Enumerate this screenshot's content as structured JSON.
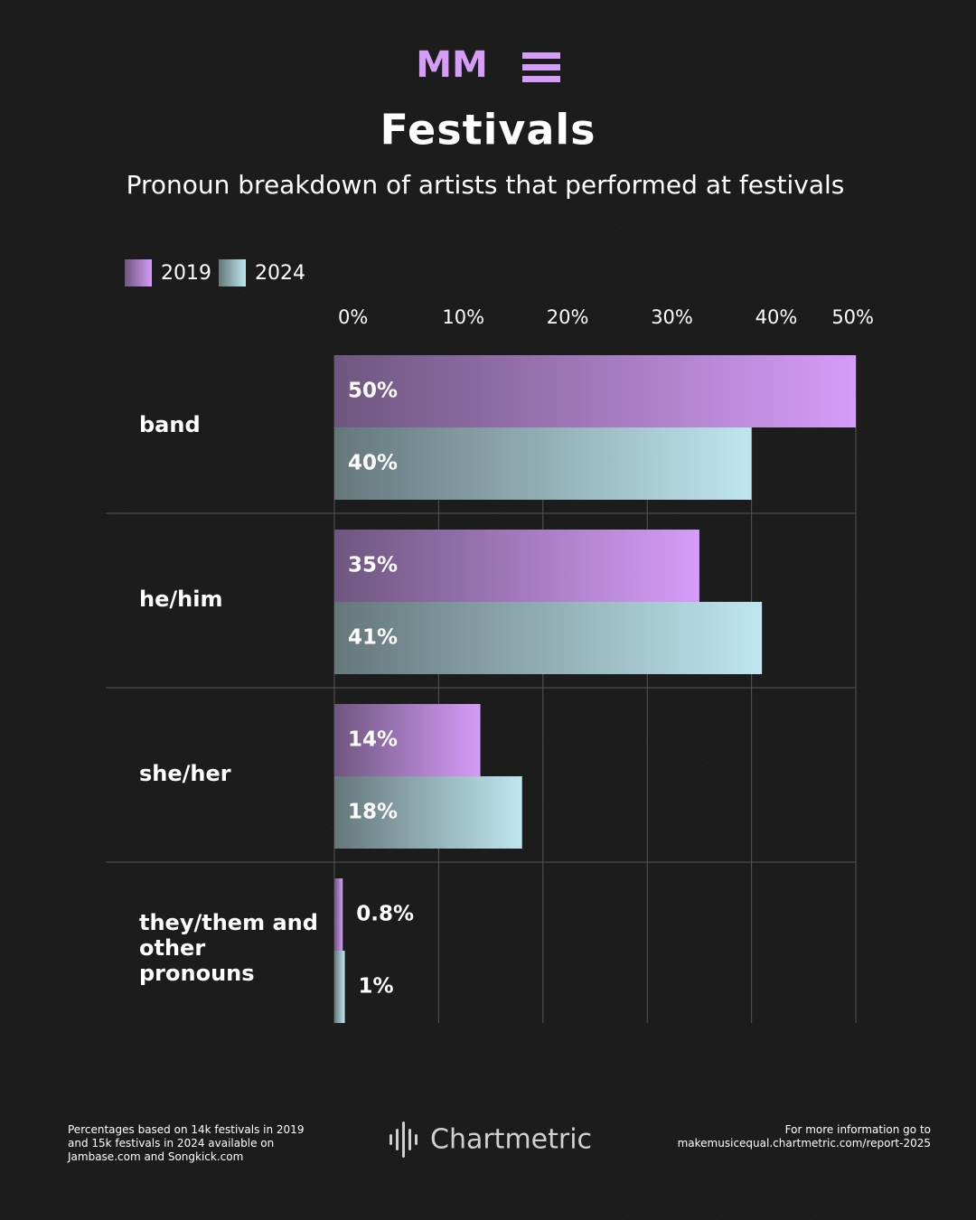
{
  "logo": "MM",
  "chart_data": {
    "type": "bar",
    "orientation": "horizontal",
    "title": "Festivals",
    "subtitle": "Pronoun breakdown of artists that performed at festivals",
    "categories": [
      "band",
      "he/him",
      "she/her",
      "they/them and other pronouns"
    ],
    "series": [
      {
        "name": "2019",
        "color": "#d59cf8",
        "values": [
          50,
          35,
          14,
          0.8
        ],
        "value_labels": [
          "50%",
          "35%",
          "14%",
          "0.8%"
        ]
      },
      {
        "name": "2024",
        "color": "#bfe6f0",
        "values": [
          40,
          41,
          18,
          1
        ],
        "value_labels": [
          "40%",
          "41%",
          "18%",
          "1%"
        ]
      }
    ],
    "xlim": [
      0,
      50
    ],
    "xticks": [
      {
        "value": 0,
        "label": "0%"
      },
      {
        "value": 10,
        "label": "10%"
      },
      {
        "value": 20,
        "label": "20%"
      },
      {
        "value": 30,
        "label": "30%"
      },
      {
        "value": 40,
        "label": "40%"
      },
      {
        "value": 50,
        "label": "50%"
      }
    ],
    "grid": true,
    "legend": "top-left"
  },
  "footer": {
    "note": "Percentages based on 14k festivals in 2019 and 15k festivals in 2024 available on Jambase.com and Songkick.com",
    "brand": "Chartmetric",
    "info_label": "For more information go to",
    "info_url": "makemusicequal.chartmetric.com/report-2025"
  }
}
